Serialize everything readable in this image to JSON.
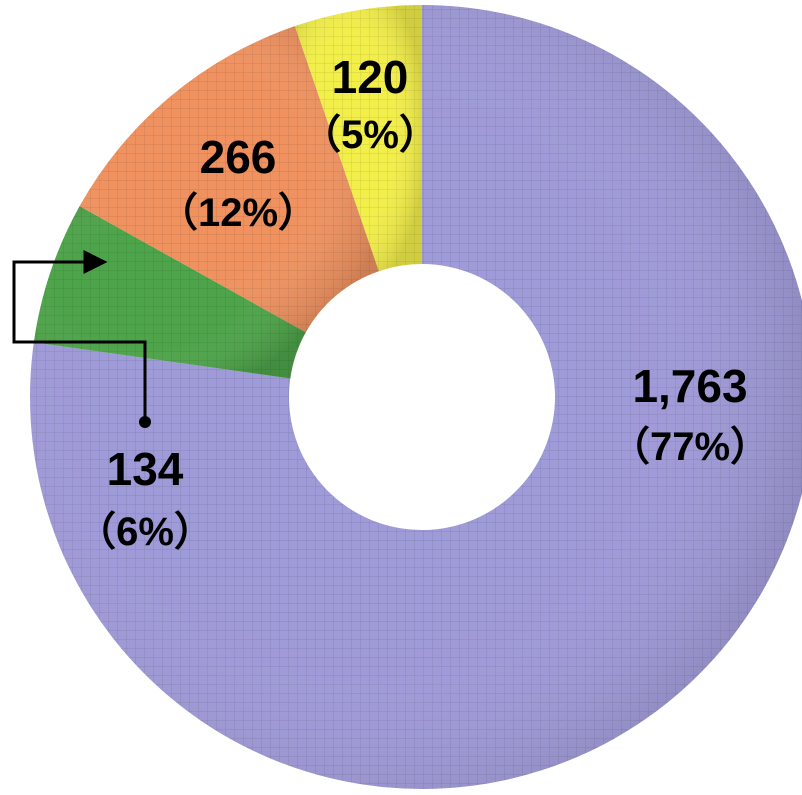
{
  "chart_data": {
    "type": "pie",
    "donut": true,
    "legend": "none",
    "grid": false,
    "slices": [
      {
        "value": 1763,
        "value_label": "1,763",
        "pct_label": "（77%）",
        "color": "#9f9ad8"
      },
      {
        "value": 134,
        "value_label": "134",
        "pct_label": "（6%）",
        "color": "#4ea44a"
      },
      {
        "value": 266,
        "value_label": "266",
        "pct_label": "（12%）",
        "color": "#ef9260"
      },
      {
        "value": 120,
        "value_label": "120",
        "pct_label": "（5%）",
        "color": "#f2ee4a"
      }
    ]
  }
}
